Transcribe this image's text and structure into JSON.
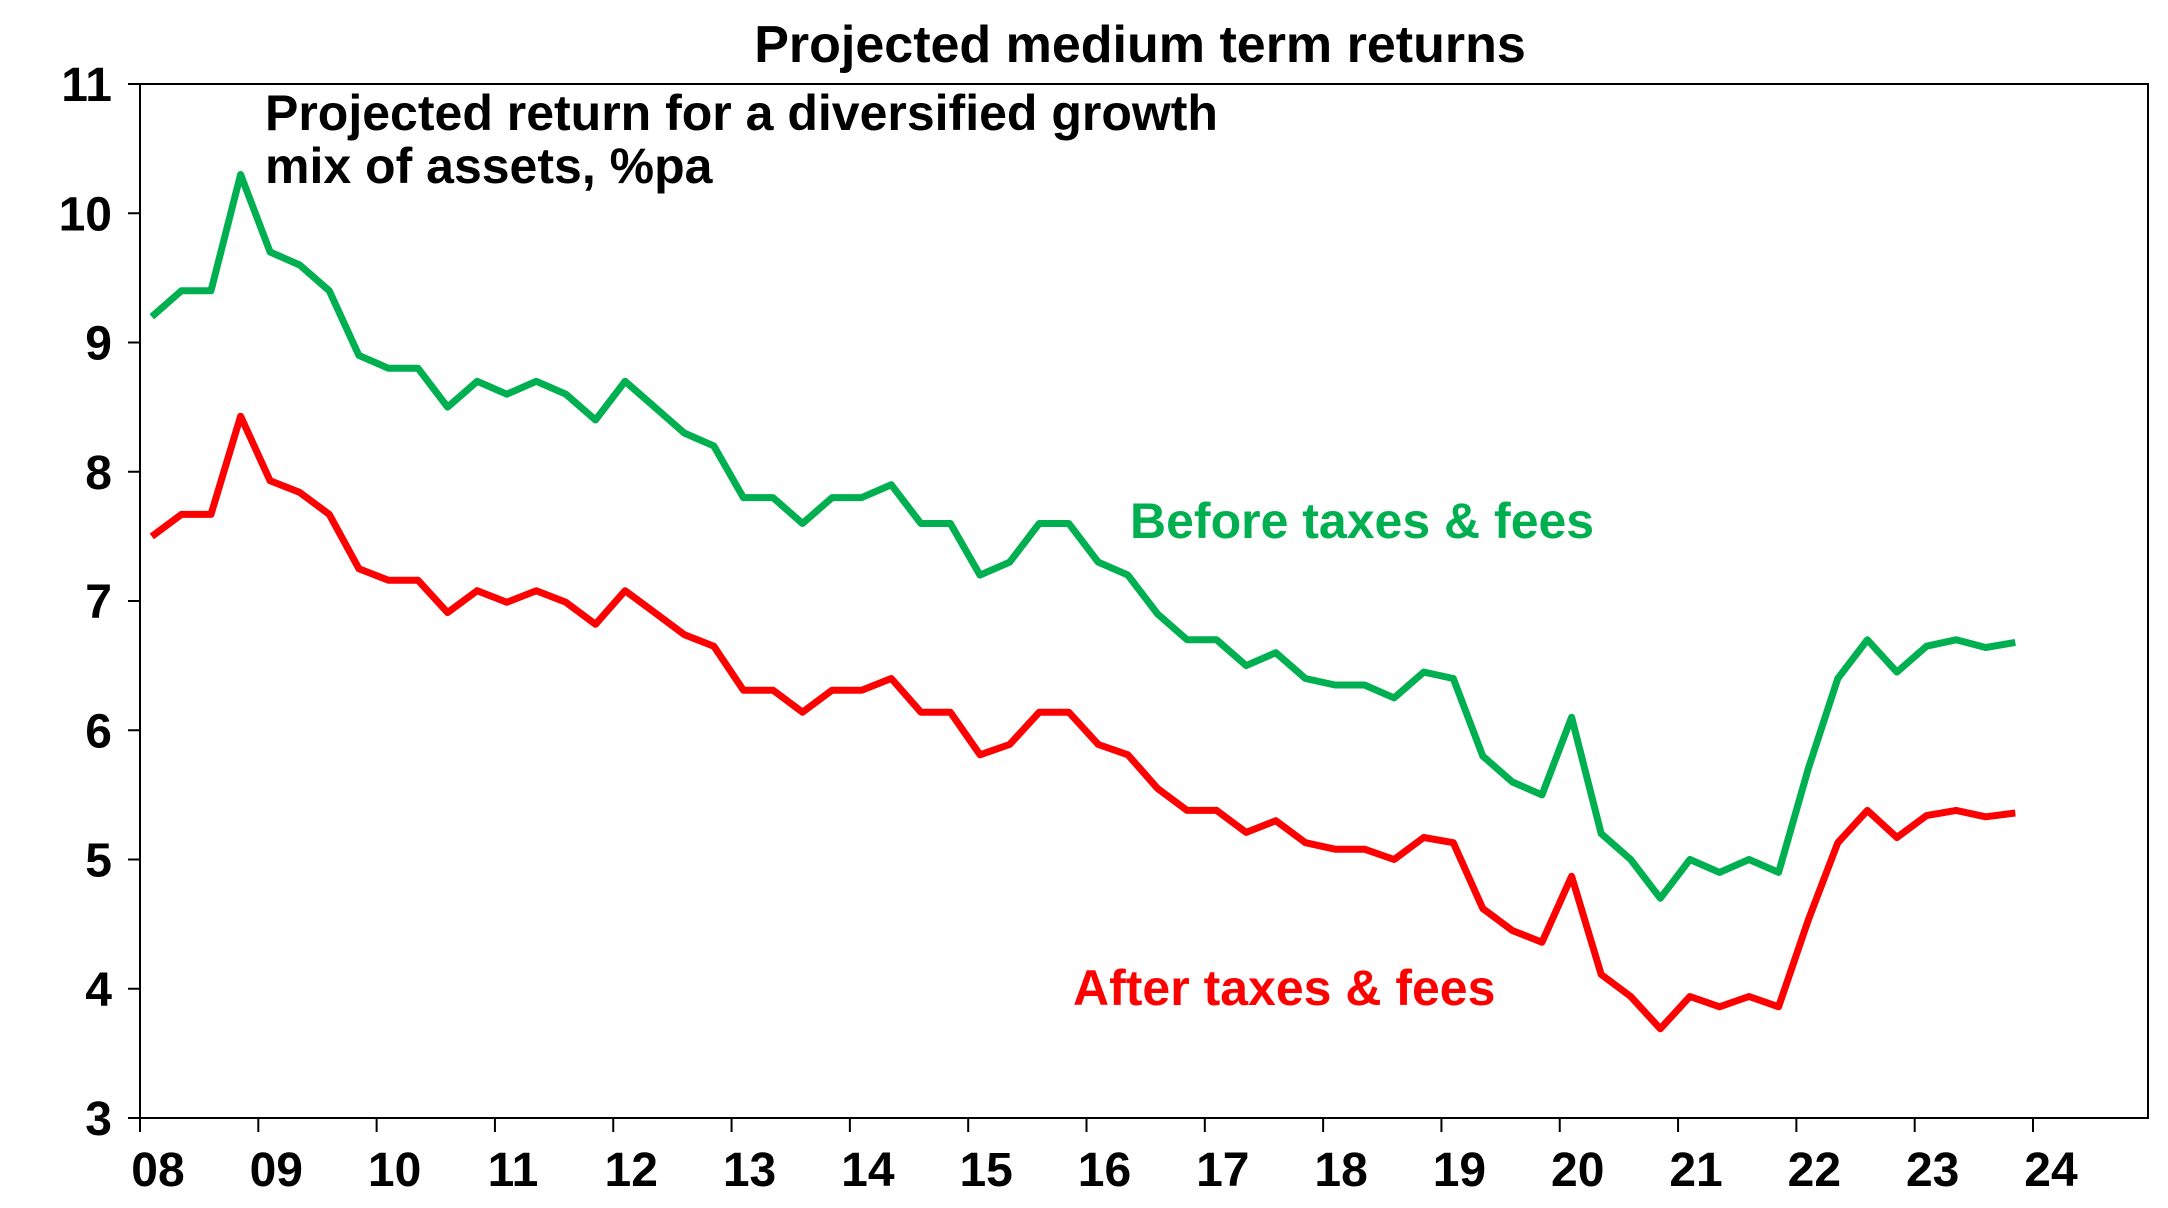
{
  "chart_data": {
    "type": "line",
    "title": "Projected medium term returns",
    "annotation": [
      "Projected return for a diversified growth",
      "mix of assets, %pa"
    ],
    "xlabel": "",
    "ylabel": "",
    "xlim": [
      2008,
      2025
    ],
    "ylim": [
      3,
      11
    ],
    "grid": false,
    "x_ticks": [
      2008,
      2009,
      2010,
      2011,
      2012,
      2013,
      2014,
      2015,
      2016,
      2017,
      2018,
      2019,
      2020,
      2021,
      2022,
      2023,
      2024
    ],
    "x_tick_labels": [
      "08",
      "09",
      "10",
      "11",
      "12",
      "13",
      "14",
      "15",
      "16",
      "17",
      "18",
      "19",
      "20",
      "21",
      "22",
      "23",
      "24"
    ],
    "y_ticks": [
      3,
      4,
      5,
      6,
      7,
      8,
      9,
      10,
      11
    ],
    "x_start": 2008.1,
    "x_step": 0.25,
    "series": [
      {
        "name": "Before taxes & fees",
        "color": "#00B050",
        "values": [
          9.2,
          9.4,
          9.4,
          10.3,
          9.7,
          9.6,
          9.4,
          8.9,
          8.8,
          8.8,
          8.5,
          8.7,
          8.6,
          8.7,
          8.6,
          8.4,
          8.7,
          8.5,
          8.3,
          8.2,
          7.8,
          7.8,
          7.6,
          7.8,
          7.8,
          7.9,
          7.6,
          7.6,
          7.2,
          7.3,
          7.6,
          7.6,
          7.3,
          7.2,
          6.9,
          6.7,
          6.7,
          6.5,
          6.6,
          6.4,
          6.35,
          6.35,
          6.25,
          6.45,
          6.4,
          5.8,
          5.6,
          5.5,
          6.1,
          5.2,
          5.0,
          4.7,
          5.0,
          4.9,
          5.0,
          4.9,
          5.7,
          6.4,
          6.7,
          6.45,
          6.65,
          6.7,
          6.64,
          6.68
        ]
      },
      {
        "name": "After taxes & fees",
        "color": "#FF0000",
        "values": [
          7.5,
          7.67,
          7.67,
          8.43,
          7.93,
          7.84,
          7.67,
          7.25,
          7.16,
          7.16,
          6.91,
          7.08,
          6.99,
          7.08,
          6.99,
          6.82,
          7.08,
          6.91,
          6.74,
          6.65,
          6.31,
          6.31,
          6.14,
          6.31,
          6.31,
          6.4,
          6.14,
          6.14,
          5.81,
          5.89,
          6.14,
          6.14,
          5.89,
          5.81,
          5.55,
          5.38,
          5.38,
          5.21,
          5.3,
          5.13,
          5.08,
          5.08,
          5.0,
          5.17,
          5.13,
          4.62,
          4.45,
          4.36,
          4.87,
          4.11,
          3.94,
          3.69,
          3.94,
          3.86,
          3.94,
          3.86,
          4.53,
          5.13,
          5.38,
          5.17,
          5.34,
          5.38,
          5.33,
          5.36
        ]
      }
    ]
  }
}
